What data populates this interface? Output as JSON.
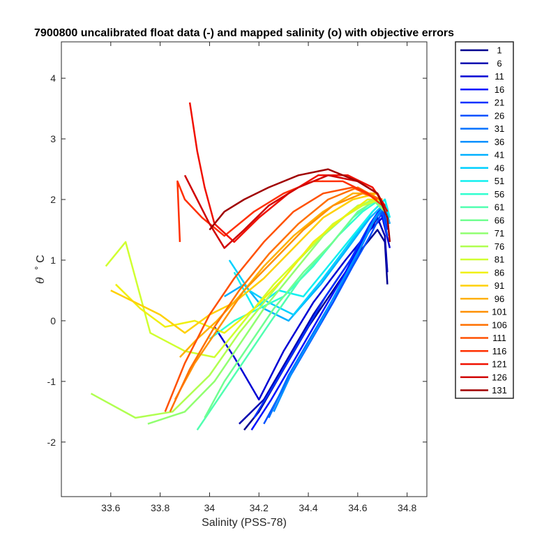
{
  "chart_data": {
    "type": "line",
    "title": "7900800 uncalibrated float data (-) and mapped salinity (o) with objective errors",
    "xlabel": "Salinity (PSS-78)",
    "ylabel_symbol": "θ",
    "ylabel_unit": "˚ C",
    "xlim": [
      33.4,
      34.88
    ],
    "ylim": [
      -2.9,
      4.6
    ],
    "xticks": [
      33.6,
      33.8,
      34,
      34.2,
      34.4,
      34.6,
      34.8
    ],
    "xtick_labels": [
      "33.6",
      "33.8",
      "34",
      "34.2",
      "34.4",
      "34.6",
      "34.8"
    ],
    "yticks": [
      -2,
      -1,
      0,
      1,
      2,
      3,
      4
    ],
    "ytick_labels": [
      "-2",
      "-1",
      "0",
      "1",
      "2",
      "3",
      "4"
    ],
    "grid": false,
    "legend_position": "outside-right",
    "legend": [
      "1",
      "6",
      "11",
      "16",
      "21",
      "26",
      "31",
      "36",
      "41",
      "46",
      "51",
      "56",
      "61",
      "66",
      "71",
      "76",
      "81",
      "86",
      "91",
      "96",
      "101",
      "106",
      "111",
      "116",
      "121",
      "126",
      "131"
    ],
    "legend_colors": [
      "#00008f",
      "#0000b0",
      "#0000d4",
      "#0010ff",
      "#0030ff",
      "#0050ff",
      "#0070ff",
      "#0090ff",
      "#00b0ff",
      "#00d0ff",
      "#10f0f0",
      "#30ffd0",
      "#50ffb0",
      "#70ff90",
      "#90ff70",
      "#b0ff50",
      "#d0ff30",
      "#f0f010",
      "#ffd000",
      "#ffb000",
      "#ff9000",
      "#ff7000",
      "#ff5000",
      "#ff3000",
      "#f01000",
      "#d00000",
      "#a00000"
    ],
    "series": [
      {
        "x": [
          34.14,
          34.2,
          34.3,
          34.4,
          34.5,
          34.6,
          34.68,
          34.71,
          34.72
        ],
        "y": [
          -1.8,
          -1.5,
          -0.8,
          -0.1,
          0.5,
          1.1,
          1.5,
          1.3,
          0.6
        ]
      },
      {
        "x": [
          34.12,
          34.22,
          34.32,
          34.42,
          34.52,
          34.62,
          34.68,
          34.71,
          34.72
        ],
        "y": [
          -1.7,
          -1.3,
          -0.6,
          0.1,
          0.7,
          1.3,
          1.7,
          1.4,
          0.8
        ]
      },
      {
        "x": [
          34.02,
          34.1,
          34.2,
          34.3,
          34.42,
          34.55,
          34.65,
          34.7,
          34.73
        ],
        "y": [
          -0.1,
          -0.6,
          -1.3,
          -0.5,
          0.3,
          1.0,
          1.5,
          1.7,
          1.2
        ]
      },
      {
        "x": [
          34.17,
          34.25,
          34.35,
          34.45,
          34.55,
          34.63,
          34.69,
          34.72
        ],
        "y": [
          -1.8,
          -1.3,
          -0.6,
          0.1,
          0.8,
          1.4,
          1.8,
          1.5
        ]
      },
      {
        "x": [
          34.18,
          34.27,
          34.37,
          34.47,
          34.57,
          34.65,
          34.7,
          34.72
        ],
        "y": [
          -1.6,
          -1.0,
          -0.3,
          0.4,
          1.0,
          1.6,
          1.9,
          1.5
        ]
      },
      {
        "x": [
          34.22,
          34.3,
          34.4,
          34.5,
          34.58,
          34.65,
          34.7,
          34.72
        ],
        "y": [
          -1.7,
          -1.1,
          -0.4,
          0.3,
          0.9,
          1.4,
          1.8,
          1.4
        ]
      },
      {
        "x": [
          34.24,
          34.32,
          34.42,
          34.52,
          34.6,
          34.66,
          34.71,
          34.72
        ],
        "y": [
          -1.6,
          -0.9,
          -0.2,
          0.5,
          1.1,
          1.6,
          1.9,
          1.6
        ]
      },
      {
        "x": [
          34.26,
          34.34,
          34.44,
          34.53,
          34.61,
          34.67,
          34.71,
          34.73
        ],
        "y": [
          -1.5,
          -0.8,
          -0.1,
          0.6,
          1.2,
          1.7,
          1.9,
          1.6
        ]
      },
      {
        "x": [
          34.06,
          34.14,
          34.22,
          34.32,
          34.45,
          34.56,
          34.65,
          34.7,
          34.73
        ],
        "y": [
          0.4,
          0.6,
          0.2,
          0.0,
          0.6,
          1.2,
          1.7,
          1.9,
          1.6
        ]
      },
      {
        "x": [
          34.08,
          34.16,
          34.24,
          34.34,
          34.46,
          34.57,
          34.66,
          34.71,
          34.73
        ],
        "y": [
          1.0,
          0.5,
          0.3,
          0.1,
          0.7,
          1.3,
          1.8,
          2.0,
          1.7
        ]
      },
      {
        "x": [
          34.1,
          34.18,
          34.28,
          34.38,
          34.48,
          34.58,
          34.66,
          34.71,
          34.73
        ],
        "y": [
          0.8,
          0.2,
          0.5,
          0.4,
          0.9,
          1.4,
          1.8,
          2.0,
          1.7
        ]
      },
      {
        "x": [
          34.0,
          34.1,
          34.2,
          34.3,
          34.42,
          34.52,
          34.62,
          34.69,
          34.72
        ],
        "y": [
          -0.3,
          0.0,
          0.2,
          0.4,
          0.9,
          1.4,
          1.8,
          2.0,
          1.8
        ]
      },
      {
        "x": [
          33.95,
          34.05,
          34.15,
          34.25,
          34.37,
          34.48,
          34.58,
          34.67,
          34.71
        ],
        "y": [
          -1.8,
          -1.2,
          -0.6,
          0.0,
          0.7,
          1.2,
          1.7,
          2.0,
          1.8
        ]
      },
      {
        "x": [
          33.98,
          34.06,
          34.16,
          34.26,
          34.38,
          34.5,
          34.6,
          34.68,
          34.72
        ],
        "y": [
          -1.6,
          -1.0,
          -0.4,
          0.2,
          0.8,
          1.3,
          1.8,
          2.0,
          1.8
        ]
      },
      {
        "x": [
          33.75,
          33.9,
          34.02,
          34.12,
          34.22,
          34.34,
          34.46,
          34.57,
          34.66,
          34.71
        ],
        "y": [
          -1.7,
          -1.5,
          -1.0,
          -0.4,
          0.2,
          0.8,
          1.4,
          1.8,
          2.0,
          1.8
        ]
      },
      {
        "x": [
          33.52,
          33.7,
          33.85,
          34.0,
          34.12,
          34.24,
          34.36,
          34.48,
          34.6,
          34.69
        ],
        "y": [
          -1.2,
          -1.6,
          -1.5,
          -0.9,
          -0.2,
          0.4,
          1.0,
          1.5,
          1.9,
          2.0
        ]
      },
      {
        "x": [
          33.58,
          33.66,
          33.76,
          33.9,
          34.02,
          34.14,
          34.26,
          34.38,
          34.5,
          34.62,
          34.69
        ],
        "y": [
          0.9,
          1.3,
          -0.2,
          -0.5,
          -0.6,
          0.0,
          0.6,
          1.1,
          1.6,
          1.9,
          2.0
        ]
      },
      {
        "x": [
          33.62,
          33.72,
          33.82,
          33.94,
          34.06,
          34.18,
          34.3,
          34.42,
          34.54,
          34.64,
          34.7
        ],
        "y": [
          0.6,
          0.2,
          -0.1,
          0.0,
          -0.2,
          0.2,
          0.7,
          1.3,
          1.7,
          2.0,
          2.0
        ]
      },
      {
        "x": [
          33.6,
          33.7,
          33.8,
          33.9,
          34.0,
          34.1,
          34.22,
          34.34,
          34.46,
          34.58,
          34.68
        ],
        "y": [
          0.5,
          0.3,
          0.1,
          -0.2,
          0.1,
          0.3,
          0.7,
          1.2,
          1.7,
          2.0,
          2.1
        ]
      },
      {
        "x": [
          33.88,
          33.95,
          34.03,
          34.12,
          34.22,
          34.34,
          34.46,
          34.58,
          34.68
        ],
        "y": [
          -0.6,
          -0.3,
          0.0,
          0.4,
          0.9,
          1.4,
          1.8,
          2.1,
          2.1
        ]
      },
      {
        "x": [
          33.86,
          33.94,
          34.04,
          34.14,
          34.26,
          34.38,
          34.5,
          34.62,
          34.7
        ],
        "y": [
          -1.3,
          -0.7,
          -0.1,
          0.5,
          1.0,
          1.5,
          1.9,
          2.1,
          2.0
        ]
      },
      {
        "x": [
          33.84,
          33.92,
          34.02,
          34.12,
          34.24,
          34.36,
          34.48,
          34.6,
          34.69
        ],
        "y": [
          -1.5,
          -0.8,
          -0.1,
          0.5,
          1.1,
          1.6,
          2.0,
          2.2,
          2.0
        ]
      },
      {
        "x": [
          33.82,
          33.9,
          34.0,
          34.1,
          34.22,
          34.34,
          34.46,
          34.58,
          34.68
        ],
        "y": [
          -1.5,
          -0.7,
          0.1,
          0.7,
          1.3,
          1.8,
          2.1,
          2.2,
          2.0
        ]
      },
      {
        "x": [
          33.88,
          33.87,
          33.9,
          33.97,
          34.06,
          34.18,
          34.3,
          34.42,
          34.54,
          34.64,
          34.7
        ],
        "y": [
          1.3,
          2.3,
          2.0,
          1.7,
          1.4,
          1.8,
          2.1,
          2.3,
          2.3,
          2.1,
          1.9
        ]
      },
      {
        "x": [
          33.92,
          33.95,
          33.98,
          34.02,
          34.1,
          34.2,
          34.32,
          34.44,
          34.56,
          34.66,
          34.71
        ],
        "y": [
          3.6,
          2.8,
          2.2,
          1.6,
          1.3,
          1.7,
          2.1,
          2.4,
          2.4,
          2.2,
          1.9
        ]
      },
      {
        "x": [
          33.9,
          33.95,
          34.0,
          34.06,
          34.14,
          34.24,
          34.36,
          34.48,
          34.6,
          34.68,
          34.72
        ],
        "y": [
          2.4,
          2.0,
          1.6,
          1.2,
          1.5,
          1.9,
          2.2,
          2.4,
          2.3,
          2.1,
          1.8
        ]
      },
      {
        "x": [
          34.0,
          34.06,
          34.14,
          34.24,
          34.36,
          34.48,
          34.6,
          34.68,
          34.72,
          34.73
        ],
        "y": [
          1.5,
          1.8,
          2.0,
          2.2,
          2.4,
          2.5,
          2.3,
          2.1,
          1.7,
          1.3
        ]
      }
    ]
  }
}
